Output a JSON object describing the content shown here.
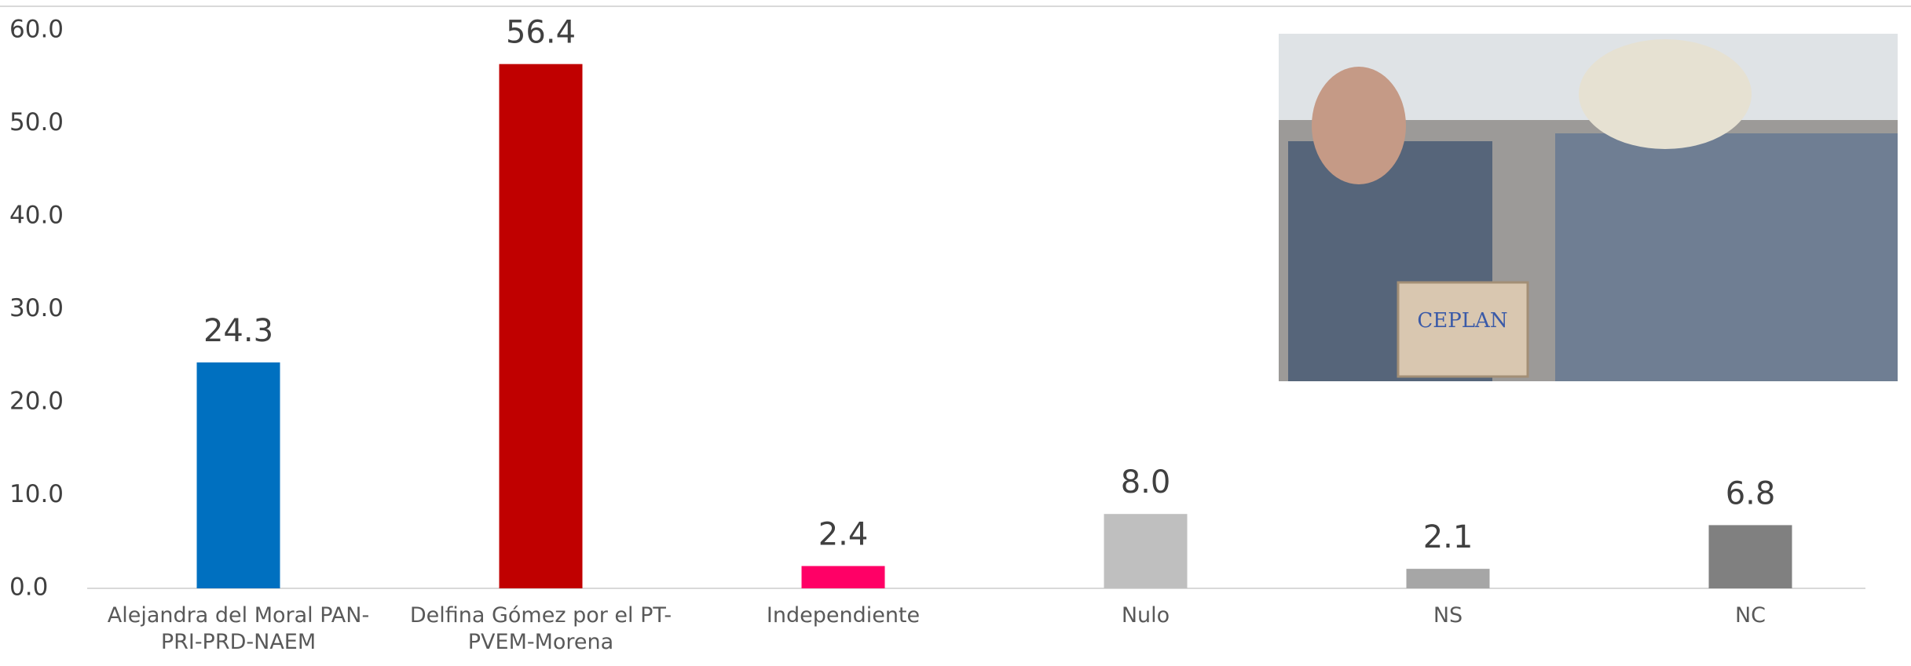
{
  "chart_data": {
    "type": "bar",
    "categories": [
      "Alejandra del Moral PAN-PRI-PRD-NAEM",
      "Delfina Gómez por el PT-PVEM-Morena",
      "Independiente",
      "Nulo",
      "NS",
      "NC"
    ],
    "values": [
      24.3,
      56.4,
      2.4,
      8.0,
      2.1,
      6.8
    ],
    "value_labels": [
      "24.3",
      "56.4",
      "2.4",
      "8.0",
      "2.1",
      "6.8"
    ],
    "colors": [
      "#0070c0",
      "#c00000",
      "#ff0066",
      "#bfbfbf",
      "#a6a6a6",
      "#808080"
    ],
    "ylim": [
      0,
      60
    ],
    "yticks": [
      {
        "value": 0,
        "label": "0.0"
      },
      {
        "value": 10,
        "label": "10.0"
      },
      {
        "value": 20,
        "label": "20.0"
      },
      {
        "value": 30,
        "label": "30.0"
      },
      {
        "value": 40,
        "label": "40.0"
      },
      {
        "value": 50,
        "label": "50.0"
      },
      {
        "value": 60,
        "label": "60.0"
      }
    ],
    "grid": false
  },
  "inset_image": {
    "text": "CEPLAN"
  }
}
